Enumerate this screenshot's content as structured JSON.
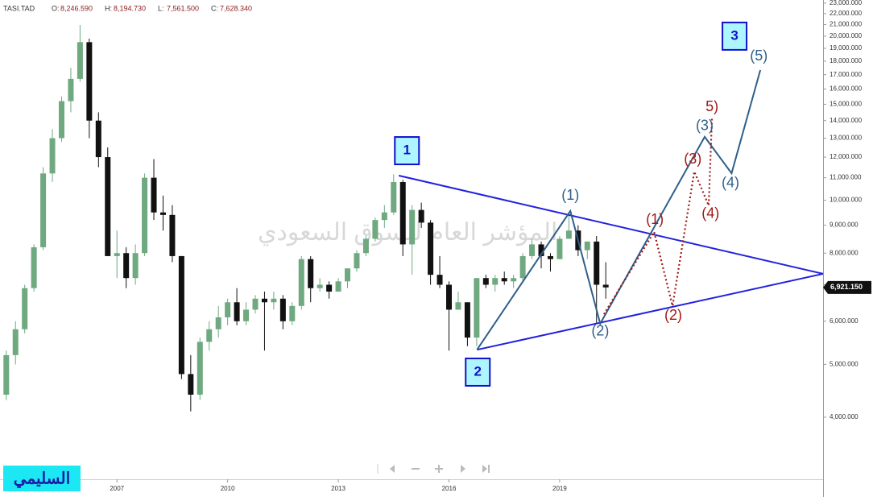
{
  "chart_data": {
    "type": "candlestick",
    "symbol": "TASI.TAD",
    "header": [
      {
        "label": "O:",
        "value": "8,246.590"
      },
      {
        "label": "H:",
        "value": "8,194.730"
      },
      {
        "label": "L:",
        "value": "7,561.500"
      },
      {
        "label": "C:",
        "value": "7,628.340"
      }
    ],
    "watermark": "المؤشر العام للسوق السعودي",
    "author": "السليمي",
    "log_scale": true,
    "up_color": "#6fa980",
    "down_color": "#111111",
    "xlim": [
      2003.83,
      2026.14
    ],
    "xticks": [
      2007,
      2010,
      2013,
      2016,
      2019
    ],
    "ylim": [
      3078,
      23300
    ],
    "yticks": [
      {
        "value": 4000,
        "label": "4,000.000"
      },
      {
        "value": 5000,
        "label": "5,000.000"
      },
      {
        "value": 6000,
        "label": "6,000.000"
      },
      {
        "value": 7000,
        "label": "7,000.000"
      },
      {
        "value": 8000,
        "label": "8,000.000"
      },
      {
        "value": 9000,
        "label": "9,000.000"
      },
      {
        "value": 10000,
        "label": "10,000.000"
      },
      {
        "value": 11000,
        "label": "11,000.000"
      },
      {
        "value": 12000,
        "label": "12,000.000"
      },
      {
        "value": 13000,
        "label": "13,000.000"
      },
      {
        "value": 14000,
        "label": "14,000.000"
      },
      {
        "value": 15000,
        "label": "15,000.000"
      },
      {
        "value": 16000,
        "label": "16,000.000"
      },
      {
        "value": 17000,
        "label": "17,000.000"
      },
      {
        "value": 18000,
        "label": "18,000.000"
      },
      {
        "value": 19000,
        "label": "19,000.000"
      },
      {
        "value": 20000,
        "label": "20,000.000"
      },
      {
        "value": 21000,
        "label": "21,000.000"
      },
      {
        "value": 22000,
        "label": "22,000.000"
      },
      {
        "value": 23000,
        "label": "23,000.000"
      }
    ],
    "last_price": {
      "value": 6921.15,
      "label": "6,921.150"
    },
    "x": [
      2004.0,
      2004.25,
      2004.5,
      2004.75,
      2005.0,
      2005.25,
      2005.5,
      2005.75,
      2006.0,
      2006.25,
      2006.5,
      2006.75,
      2007.0,
      2007.25,
      2007.5,
      2007.75,
      2008.0,
      2008.25,
      2008.5,
      2008.75,
      2009.0,
      2009.25,
      2009.5,
      2009.75,
      2010.0,
      2010.25,
      2010.5,
      2010.75,
      2011.0,
      2011.25,
      2011.5,
      2011.75,
      2012.0,
      2012.25,
      2012.5,
      2012.75,
      2013.0,
      2013.25,
      2013.5,
      2013.75,
      2014.0,
      2014.25,
      2014.5,
      2014.75,
      2015.0,
      2015.25,
      2015.5,
      2015.75,
      2016.0,
      2016.25,
      2016.5,
      2016.75,
      2017.0,
      2017.25,
      2017.5,
      2017.75,
      2018.0,
      2018.25,
      2018.5,
      2018.75,
      2019.0,
      2019.25,
      2019.5,
      2019.75,
      2020.0,
      2020.25
    ],
    "open": [
      4400,
      5200,
      5800,
      6900,
      8200,
      11200,
      13000,
      15200,
      16700,
      19500,
      14000,
      12000,
      7900,
      8000,
      7200,
      8000,
      11000,
      9500,
      9400,
      7900,
      4800,
      4400,
      5500,
      5800,
      6100,
      6500,
      6000,
      6300,
      6600,
      6500,
      6600,
      6000,
      6400,
      7800,
      6900,
      7000,
      6800,
      7100,
      7500,
      8000,
      8500,
      9200,
      9500,
      10800,
      8300,
      9600,
      9100,
      7300,
      7000,
      6300,
      6500,
      5600,
      7200,
      7000,
      7200,
      7100,
      7200,
      7900,
      8300,
      7900,
      7800,
      8500,
      8800,
      8100,
      8400,
      7000
    ],
    "high": [
      5300,
      6000,
      7000,
      8300,
      11500,
      13500,
      15500,
      17500,
      20966,
      19800,
      14500,
      12500,
      8800,
      8200,
      8300,
      11200,
      11900,
      10200,
      9800,
      7900,
      5200,
      5600,
      6000,
      6400,
      6600,
      6900,
      6500,
      6700,
      6800,
      6800,
      6700,
      6500,
      7900,
      7900,
      7200,
      7100,
      7200,
      7500,
      8100,
      8600,
      9300,
      9800,
      11160,
      10900,
      9800,
      9900,
      9200,
      7900,
      7100,
      6800,
      6500,
      7200,
      7300,
      7300,
      7400,
      7300,
      8000,
      8500,
      8400,
      8000,
      8600,
      9400,
      9000,
      8400,
      8600,
      7700
    ],
    "low": [
      4300,
      5000,
      5700,
      6800,
      8100,
      10800,
      12800,
      14500,
      16500,
      13000,
      11500,
      7900,
      7200,
      6900,
      7000,
      7900,
      9200,
      8800,
      7700,
      4700,
      4100,
      4300,
      5300,
      5600,
      5900,
      5900,
      5900,
      6200,
      5300,
      6300,
      5800,
      5900,
      6300,
      6500,
      6800,
      6600,
      6800,
      6900,
      7400,
      7900,
      8400,
      8900,
      9400,
      7900,
      7300,
      8900,
      7000,
      6900,
      5300,
      6300,
      5400,
      5400,
      6900,
      6800,
      7000,
      6900,
      7100,
      7800,
      7500,
      7400,
      7800,
      8500,
      7900,
      7800,
      5960,
      6600
    ],
    "close": [
      5200,
      5800,
      6900,
      8200,
      11200,
      13000,
      15200,
      16700,
      19500,
      14000,
      12000,
      7900,
      8000,
      7200,
      8000,
      11000,
      9500,
      9400,
      7900,
      4800,
      4400,
      5500,
      5800,
      6100,
      6500,
      6000,
      6300,
      6600,
      6500,
      6600,
      6000,
      6400,
      7800,
      6900,
      7000,
      6800,
      7100,
      7500,
      8000,
      8500,
      9200,
      9500,
      10800,
      8300,
      9600,
      9100,
      7300,
      7000,
      6300,
      6500,
      5600,
      7200,
      7000,
      7200,
      7100,
      7200,
      7900,
      8300,
      7900,
      7800,
      8500,
      8800,
      8100,
      8400,
      7000,
      6921
    ],
    "lines": [
      {
        "color": "#2222dd",
        "dash": false,
        "x": [
          2014.64,
          2026.14
        ],
        "y": [
          11100,
          7330
        ]
      },
      {
        "color": "#2222dd",
        "dash": false,
        "x": [
          2016.76,
          2026.14
        ],
        "y": [
          5320,
          7330
        ]
      },
      {
        "color": "#2f5f8a",
        "dash": false,
        "x": [
          2016.76,
          2019.29,
          2020.1,
          2022.93,
          2023.66,
          2024.44
        ],
        "y": [
          5320,
          9560,
          5940,
          13070,
          11210,
          17330
        ]
      },
      {
        "color": "#a01818",
        "dash": true,
        "x": [
          2020.2,
          2021.56,
          2022.06,
          2022.65,
          2023.04,
          2023.13
        ],
        "y": [
          6180,
          8750,
          6400,
          11290,
          9780,
          14220
        ]
      }
    ],
    "annotations": [
      {
        "text": "1",
        "x": 2014.86,
        "y": 12330,
        "color": "#1010cc",
        "box": true
      },
      {
        "text": "2",
        "x": 2016.78,
        "y": 4840,
        "color": "#1010cc",
        "box": true
      },
      {
        "text": "3",
        "x": 2023.74,
        "y": 20000,
        "color": "#1010cc",
        "box": true
      },
      {
        "text": "(1)",
        "x": 2019.29,
        "y": 10190,
        "color": "#2f5f8a",
        "box": false
      },
      {
        "text": "(2)",
        "x": 2020.1,
        "y": 5740,
        "color": "#2f5f8a",
        "box": false
      },
      {
        "text": "(3)",
        "x": 2022.93,
        "y": 13660,
        "color": "#2f5f8a",
        "box": false
      },
      {
        "text": "(4)",
        "x": 2023.63,
        "y": 10730,
        "color": "#2f5f8a",
        "box": false
      },
      {
        "text": "(5)",
        "x": 2024.4,
        "y": 18360,
        "color": "#2f5f8a",
        "box": false
      },
      {
        "text": "(1)",
        "x": 2021.58,
        "y": 9200,
        "color": "#a01818",
        "box": false
      },
      {
        "text": "(2)",
        "x": 2022.08,
        "y": 6140,
        "color": "#a01818",
        "box": false
      },
      {
        "text": "(3)",
        "x": 2022.61,
        "y": 11880,
        "color": "#a01818",
        "box": false
      },
      {
        "text": "(4)",
        "x": 2023.09,
        "y": 9430,
        "color": "#a01818",
        "box": false
      },
      {
        "text": "5)",
        "x": 2023.13,
        "y": 14820,
        "color": "#a01818",
        "box": false
      }
    ]
  }
}
